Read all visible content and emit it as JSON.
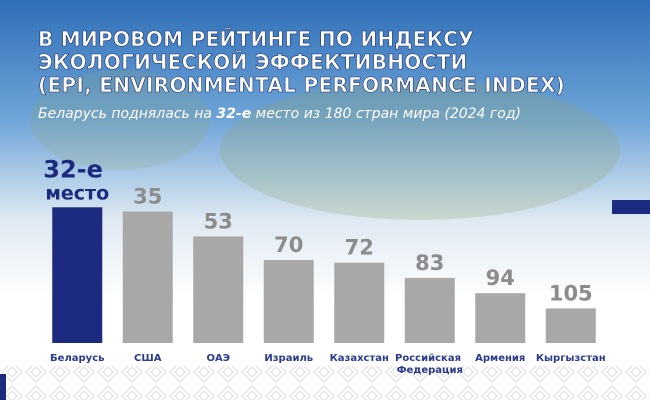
{
  "chart_data": {
    "type": "bar",
    "title": [
      "В МИРОВОМ РЕЙТИНГЕ ПО ИНДЕКСУ",
      "ЭКОЛОГИЧЕСКОЙ ЭФФЕКТИВНОСТИ",
      "(EPI, ENVIRONMENTAL PERFORMANCE INDEX)"
    ],
    "subtitle": [
      "Беларусь поднялась на ",
      "32-е",
      " место из 180 стран мира (2024 год)"
    ],
    "categories": [
      "Беларусь",
      "США",
      "ОАЭ",
      "Израиль",
      "Казахстан",
      "Российская Федерация",
      "Армения",
      "Кыргызстан"
    ],
    "values": [
      32,
      35,
      53,
      70,
      72,
      83,
      94,
      105
    ],
    "value_labels": [
      "32-е место",
      "35",
      "53",
      "70",
      "72",
      "83",
      "94",
      "105"
    ],
    "colors": [
      "#1c2b7f",
      "#a8a8a8",
      "#a8a8a8",
      "#a8a8a8",
      "#a8a8a8",
      "#a8a8a8",
      "#a8a8a8",
      "#a8a8a8"
    ],
    "label_colors": [
      "#1c2b7f",
      "#8c8c8c",
      "#8c8c8c",
      "#8c8c8c",
      "#8c8c8c",
      "#8c8c8c",
      "#8c8c8c",
      "#8c8c8c"
    ],
    "ylim": [
      130,
      0
    ]
  }
}
